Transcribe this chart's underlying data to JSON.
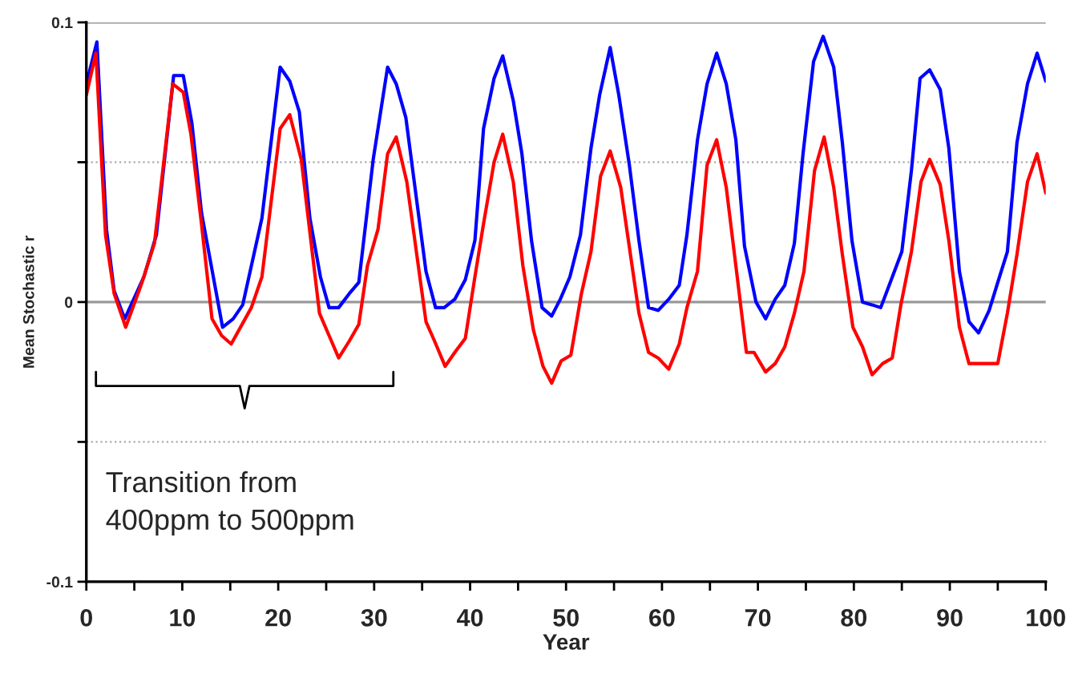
{
  "chart_data": {
    "type": "line",
    "xlabel": "Year",
    "ylabel": "Mean Stochastic r",
    "xlim": [
      0,
      100
    ],
    "xticks": [
      0,
      {
        "value": 5,
        "label": null
      },
      10,
      {
        "value": 15,
        "label": null
      },
      20,
      {
        "value": 25,
        "label": null
      },
      30,
      {
        "value": 35,
        "label": null
      },
      40,
      {
        "value": 45,
        "label": null
      },
      50,
      {
        "value": 55,
        "label": null
      },
      60,
      {
        "value": 65,
        "label": null
      },
      70,
      {
        "value": 75,
        "label": null
      },
      80,
      {
        "value": 85,
        "label": null
      },
      90,
      {
        "value": 95,
        "label": null
      },
      100
    ],
    "ylim": [
      -0.1,
      0.1
    ],
    "yticks": [
      -0.1,
      {
        "value": -0.05,
        "label": null
      },
      0,
      {
        "value": 0.05,
        "label": null
      },
      0.1
    ],
    "grid": "y",
    "legend": false,
    "marker": "none",
    "line_style": "solid",
    "annotations": [
      "Transition from\n400ppm to 500ppm"
    ],
    "series": [
      {
        "color": "#0000ff",
        "x": [
          0,
          1.1,
          2.1,
          2.9,
          4,
          6,
          7.3,
          9.1,
          10.1,
          11,
          12,
          14.2,
          15.3,
          16.3,
          18.3,
          20.2,
          21.2,
          22.2,
          23.3,
          24.4,
          25.3,
          26.3,
          27.4,
          28.4,
          29.9,
          31.4,
          32.3,
          33.3,
          35.4,
          36.4,
          37.3,
          38.4,
          39.5,
          40.5,
          41.4,
          42.5,
          43.4,
          44.5,
          45.4,
          46.4,
          47.5,
          48.5,
          49.4,
          50.4,
          51.5,
          52.6,
          53.5,
          54.6,
          55.5,
          56.6,
          57.6,
          58.6,
          59.6,
          60.7,
          61.8,
          62.6,
          63.7,
          64.7,
          65.7,
          66.7,
          67.7,
          68.6,
          69.8,
          70.8,
          71.8,
          72.8,
          73.8,
          74.7,
          75.8,
          76.8,
          77.9,
          78.8,
          79.8,
          80.9,
          81.9,
          82.8,
          83.9,
          85,
          86,
          86.9,
          87.9,
          89,
          89.9,
          91,
          92,
          93,
          94.1,
          95,
          96,
          97,
          98.1,
          99.1,
          100
        ],
        "values": [
          0.078,
          0.093,
          0.026,
          0.004,
          -0.006,
          0.009,
          0.024,
          0.081,
          0.081,
          0.064,
          0.032,
          -0.009,
          -0.006,
          -0.001,
          0.03,
          0.084,
          0.079,
          0.068,
          0.03,
          0.009,
          -0.002,
          -0.002,
          0.003,
          0.007,
          0.051,
          0.084,
          0.078,
          0.066,
          0.011,
          -0.002,
          -0.002,
          0.001,
          0.008,
          0.022,
          0.062,
          0.08,
          0.088,
          0.072,
          0.053,
          0.022,
          -0.002,
          -0.005,
          0.001,
          0.009,
          0.024,
          0.055,
          0.074,
          0.091,
          0.074,
          0.049,
          0.022,
          -0.002,
          -0.003,
          0.001,
          0.006,
          0.024,
          0.058,
          0.078,
          0.089,
          0.078,
          0.058,
          0.02,
          0,
          -0.006,
          0.001,
          0.006,
          0.021,
          0.053,
          0.086,
          0.095,
          0.084,
          0.057,
          0.022,
          0,
          -0.001,
          -0.002,
          0.008,
          0.018,
          0.047,
          0.08,
          0.083,
          0.076,
          0.055,
          0.011,
          -0.007,
          -0.011,
          -0.003,
          0.007,
          0.018,
          0.057,
          0.078,
          0.089,
          0.079
        ]
      },
      {
        "color": "#ff0000",
        "x": [
          0,
          1,
          2,
          2.9,
          4.1,
          5.8,
          7.1,
          9,
          10.1,
          10.9,
          12,
          13.1,
          14.1,
          15.1,
          17.2,
          18.3,
          20.2,
          21.2,
          22.4,
          24.3,
          25.3,
          26.3,
          27.4,
          28.4,
          29.3,
          30.4,
          31.4,
          32.3,
          33.4,
          35.4,
          36.3,
          37.4,
          38.4,
          39.5,
          40.5,
          41.4,
          42.5,
          43.4,
          44.5,
          45.5,
          46.6,
          47.6,
          48.5,
          49.5,
          50.5,
          51.6,
          52.6,
          53.6,
          54.6,
          55.7,
          56.5,
          57.6,
          58.6,
          59.6,
          60.7,
          61.8,
          62.6,
          63.7,
          64.7,
          65.7,
          66.7,
          67.7,
          68.8,
          69.6,
          70.8,
          71.8,
          72.8,
          73.8,
          74.8,
          75.9,
          76.9,
          77.9,
          78.8,
          79.9,
          80.9,
          81.9,
          83,
          84,
          84.9,
          86,
          87,
          87.9,
          89,
          89.9,
          91,
          92,
          93.1,
          94.1,
          95,
          96,
          97,
          98.1,
          99.1,
          100
        ],
        "values": [
          0.074,
          0.089,
          0.024,
          0.003,
          -0.009,
          0.007,
          0.021,
          0.078,
          0.075,
          0.06,
          0.028,
          -0.006,
          -0.012,
          -0.015,
          -0.002,
          0.009,
          0.062,
          0.067,
          0.051,
          -0.004,
          -0.012,
          -0.02,
          -0.014,
          -0.008,
          0.013,
          0.026,
          0.053,
          0.059,
          0.043,
          -0.007,
          -0.014,
          -0.023,
          -0.018,
          -0.013,
          0.009,
          0.028,
          0.05,
          0.06,
          0.043,
          0.013,
          -0.01,
          -0.023,
          -0.029,
          -0.021,
          -0.019,
          0.003,
          0.018,
          0.045,
          0.054,
          0.041,
          0.022,
          -0.004,
          -0.018,
          -0.02,
          -0.024,
          -0.015,
          -0.002,
          0.011,
          0.049,
          0.058,
          0.041,
          0.013,
          -0.018,
          -0.018,
          -0.025,
          -0.022,
          -0.016,
          -0.004,
          0.011,
          0.047,
          0.059,
          0.041,
          0.017,
          -0.009,
          -0.016,
          -0.026,
          -0.022,
          -0.02,
          -0.001,
          0.018,
          0.043,
          0.051,
          0.042,
          0.022,
          -0.009,
          -0.022,
          -0.022,
          -0.022,
          -0.022,
          -0.004,
          0.017,
          0.043,
          0.053,
          0.039
        ]
      }
    ]
  }
}
